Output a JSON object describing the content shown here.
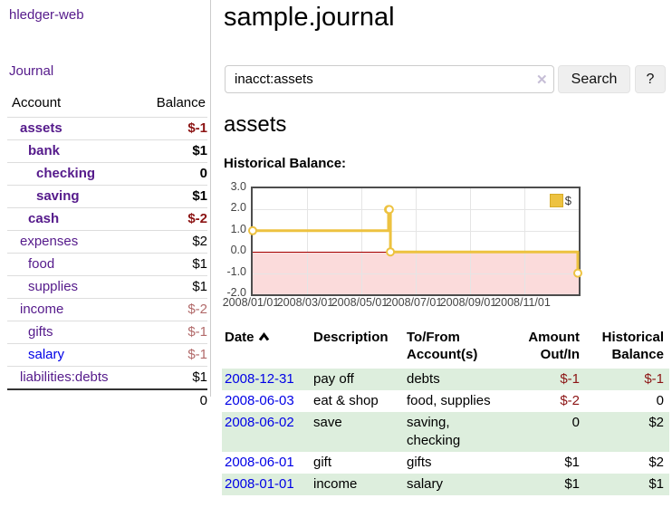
{
  "app": {
    "brand": "hledger-web"
  },
  "sidebar": {
    "nav_journal": "Journal",
    "accounts_table": {
      "columns": {
        "account": "Account",
        "balance": "Balance"
      },
      "rows": [
        {
          "name": "assets",
          "balance": "$-1"
        },
        {
          "name": "bank",
          "balance": "$1"
        },
        {
          "name": "checking",
          "balance": "0"
        },
        {
          "name": "saving",
          "balance": "$1"
        },
        {
          "name": "cash",
          "balance": "$-2"
        },
        {
          "name": "expenses",
          "balance": "$2"
        },
        {
          "name": "food",
          "balance": "$1"
        },
        {
          "name": "supplies",
          "balance": "$1"
        },
        {
          "name": "income",
          "balance": "$-2"
        },
        {
          "name": "gifts",
          "balance": "$-1"
        },
        {
          "name": "salary",
          "balance": "$-1"
        },
        {
          "name": "liabilities:debts",
          "balance": "$1"
        }
      ],
      "total": "0"
    }
  },
  "header": {
    "title": "sample.journal"
  },
  "search": {
    "query": "inacct:assets",
    "clear_icon": "✕",
    "button_label": "Search",
    "help_label": "?"
  },
  "account_page": {
    "heading": "assets",
    "chart_label": "Historical Balance:"
  },
  "chart_data": {
    "type": "line",
    "step": true,
    "title": "Historical Balance",
    "ylim": [
      -2,
      3
    ],
    "x_months_range": [
      0,
      12
    ],
    "yticks": [
      "3.0",
      "2.0",
      "1.0",
      "0.0",
      "-1.0",
      "-2.0"
    ],
    "xticks": [
      {
        "label": "2008/01/01",
        "month": 0
      },
      {
        "label": "2008/03/01",
        "month": 2
      },
      {
        "label": "2008/05/01",
        "month": 4
      },
      {
        "label": "2008/07/01",
        "month": 6
      },
      {
        "label": "2008/09/01",
        "month": 8
      },
      {
        "label": "2008/11/01",
        "month": 10
      }
    ],
    "series": [
      {
        "name": "$",
        "color": "#edc240",
        "points": [
          {
            "date": "2008-01-01",
            "month_x": 0,
            "y": 1
          },
          {
            "date": "2008-06-01",
            "month_x": 5.0,
            "y": 2
          },
          {
            "date": "2008-06-02",
            "month_x": 5.03,
            "y": 2
          },
          {
            "date": "2008-06-03",
            "month_x": 5.07,
            "y": 0
          },
          {
            "date": "2008-12-31",
            "month_x": 11.97,
            "y": -1
          }
        ]
      }
    ],
    "legend": {
      "position": "top-right",
      "label": "$",
      "swatch_color": "#edc240"
    },
    "grid": true,
    "zero_line_color": "#a40000",
    "negative_region_fill": "#fbdbdb"
  },
  "register": {
    "columns": {
      "date": "Date",
      "description": "Description",
      "accounts": "To/From Account(s)",
      "amount": "Amount Out/In",
      "balance": "Historical Balance"
    },
    "sort": {
      "column": "date",
      "direction": "ascending"
    },
    "rows": [
      {
        "date": "2008-12-31",
        "description": "pay off",
        "accounts": "debts",
        "amount": "$-1",
        "balance": "$-1"
      },
      {
        "date": "2008-06-03",
        "description": "eat & shop",
        "accounts": "food, supplies",
        "amount": "$-2",
        "balance": "0"
      },
      {
        "date": "2008-06-02",
        "description": "save",
        "accounts": "saving, checking",
        "amount": "0",
        "balance": "$2"
      },
      {
        "date": "2008-06-01",
        "description": "gift",
        "accounts": "gifts",
        "amount": "$1",
        "balance": "$2"
      },
      {
        "date": "2008-01-01",
        "description": "income",
        "accounts": "salary",
        "amount": "$1",
        "balance": "$1"
      }
    ]
  }
}
